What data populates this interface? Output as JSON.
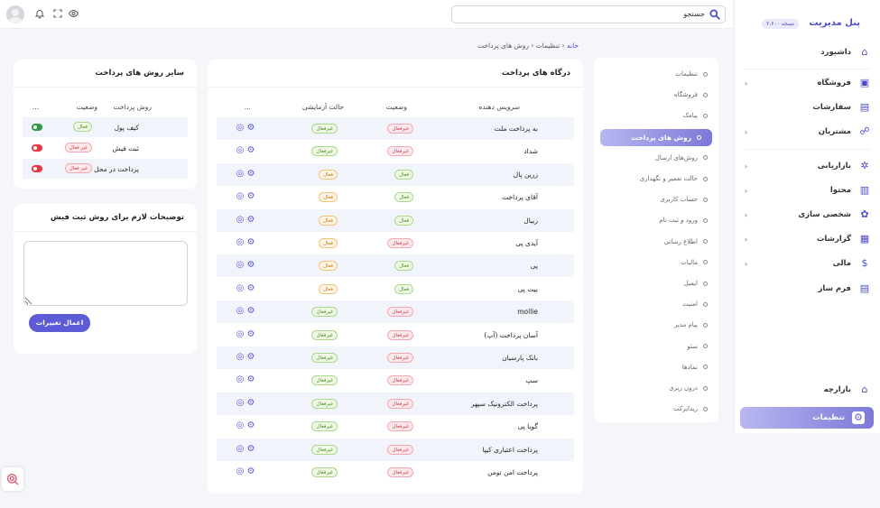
{
  "topbar": {
    "search_placeholder": "جستجو"
  },
  "sidebar": {
    "brand": "پنل مدیریت",
    "version": "نسخه ۲.۶۰۰",
    "items": [
      {
        "label": "داشبورد",
        "icon": "home-icon"
      },
      {
        "label": "فروشگاه",
        "icon": "bag-icon",
        "chevron": true
      },
      {
        "label": "سفارشات",
        "icon": "clipboard-icon"
      },
      {
        "label": "مشتریان",
        "icon": "users-icon",
        "chevron": true
      },
      {
        "label": "بازاریابی",
        "icon": "megaphone-icon",
        "chevron": true
      },
      {
        "label": "محتوا",
        "icon": "content-icon",
        "chevron": true
      },
      {
        "label": "شخصی سازی",
        "icon": "palette-icon",
        "chevron": true
      },
      {
        "label": "گزارشات",
        "icon": "chart-icon",
        "chevron": true
      },
      {
        "label": "مالی",
        "icon": "dollar-icon",
        "chevron": true
      },
      {
        "label": "فرم ساز",
        "icon": "form-icon"
      }
    ],
    "bottom_items": [
      {
        "label": "بازارچه",
        "icon": "store-icon"
      },
      {
        "label": "تنظیمات",
        "icon": "settings-icon"
      }
    ]
  },
  "breadcrumb": {
    "home": "خانه",
    "sep": "‹",
    "settings": "تنظیمات",
    "current": "روش های پرداخت"
  },
  "settings_menu": {
    "items": [
      "تنظیمات",
      "فروشگاه",
      "پیامک",
      "روش های پرداخت",
      "روش‌های ارسال",
      "حالت تعمیر و نگهداری",
      "حساب کاربری",
      "ورود و ثبت نام",
      "اطلاع رسانی",
      "مالیات",
      "ایمیل",
      "امنیت",
      "پیام مدیر",
      "سئو",
      "نمادها",
      "درون ریزی",
      "ریدایرکت"
    ],
    "active_index": 3
  },
  "gateways": {
    "title": "درگاه های پرداخت",
    "headers": {
      "provider": "سرویس دهنده",
      "status": "وضعیت",
      "test_mode": "حالت آزمایشی",
      "actions": "..."
    },
    "labels": {
      "active": "فعال",
      "inactive": "غیرفعال"
    },
    "rows": [
      {
        "name": "به پرداخت ملت",
        "status": "inactive",
        "test": "inactive"
      },
      {
        "name": "شداد",
        "status": "inactive",
        "test": "inactive"
      },
      {
        "name": "زرین پال",
        "status": "active",
        "test": "active_orange"
      },
      {
        "name": "آقای پرداخت",
        "status": "active",
        "test": "active_orange"
      },
      {
        "name": "زیبال",
        "status": "active",
        "test": "active_orange"
      },
      {
        "name": "آیدی پی",
        "status": "inactive",
        "test": "active_orange"
      },
      {
        "name": "پی",
        "status": "active",
        "test": "active_orange"
      },
      {
        "name": "بیت پی",
        "status": "active",
        "test": "active_orange"
      },
      {
        "name": "mollie",
        "status": "inactive",
        "test": "inactive"
      },
      {
        "name": "آسان پرداخت (آپ)",
        "status": "inactive",
        "test": "inactive"
      },
      {
        "name": "بانک پارسیان",
        "status": "inactive",
        "test": "inactive"
      },
      {
        "name": "سپ",
        "status": "inactive",
        "test": "inactive"
      },
      {
        "name": "پرداخت الکترونیک سپهر",
        "status": "inactive",
        "test": "inactive"
      },
      {
        "name": "گویا پی",
        "status": "inactive",
        "test": "inactive"
      },
      {
        "name": "پرداخت اعتباری کیپا",
        "status": "inactive",
        "test": "inactive"
      },
      {
        "name": "پرداخت امن تومن",
        "status": "inactive",
        "test": "inactive"
      }
    ]
  },
  "other_methods": {
    "title": "سایر روش های پرداخت",
    "headers": {
      "method": "روش پرداخت",
      "status": "وضعیت",
      "actions": "..."
    },
    "rows": [
      {
        "name": "کیف پول",
        "badge": "فعال",
        "badge_type": "green",
        "enabled": true
      },
      {
        "name": "ثبت فیش",
        "badge": "غیر فعال",
        "badge_type": "red",
        "enabled": false
      },
      {
        "name": "پرداخت در محل",
        "badge": "غیر فعال",
        "badge_type": "red",
        "enabled": false
      }
    ]
  },
  "receipt_desc": {
    "title": "توضیحات لازم برای روش ثبت فیش",
    "value": "",
    "button": "اعمال تغییرات"
  }
}
